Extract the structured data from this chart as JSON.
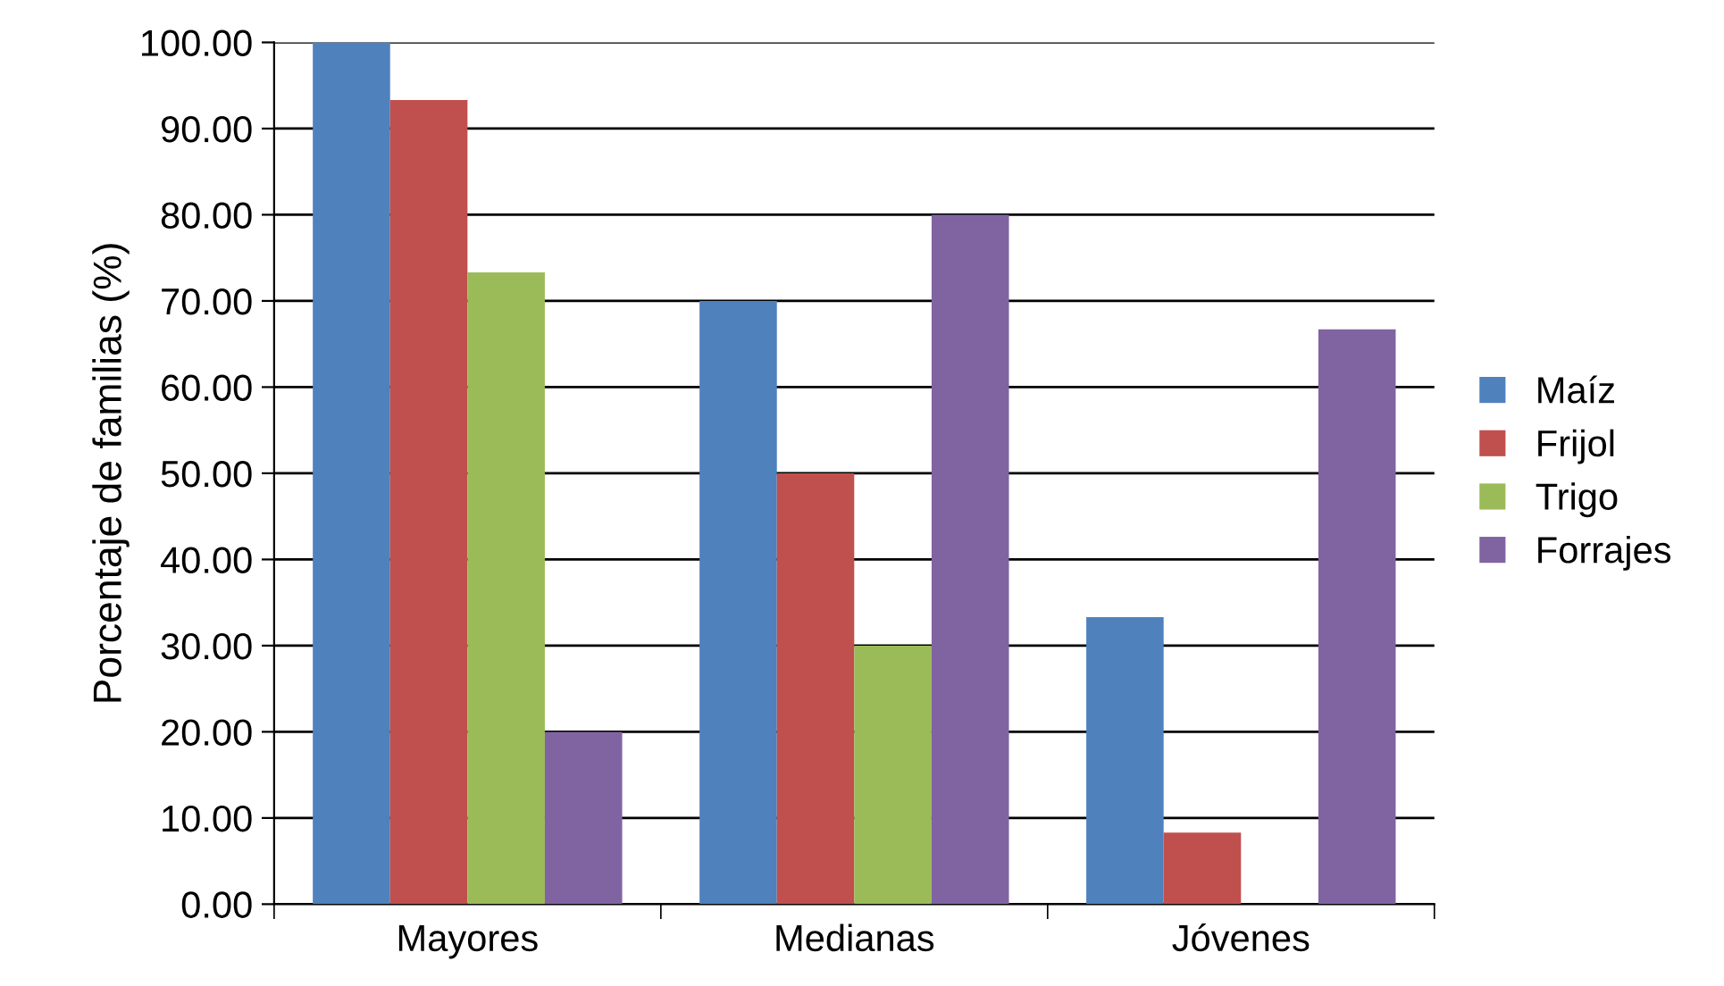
{
  "chart_data": {
    "type": "bar",
    "ylabel": "Porcentaje de familias (%)",
    "categories": [
      "Mayores",
      "Medianas",
      "Jóvenes"
    ],
    "series": [
      {
        "name": "Maíz",
        "color": "#4f81bd",
        "values": [
          100,
          70,
          33.3
        ]
      },
      {
        "name": "Frijol",
        "color": "#c0504d",
        "values": [
          93.3,
          50,
          8.3
        ]
      },
      {
        "name": "Trigo",
        "color": "#9bbb59",
        "values": [
          73.3,
          30,
          null
        ]
      },
      {
        "name": "Forrajes",
        "color": "#8064a2",
        "values": [
          20,
          80,
          66.7
        ]
      }
    ],
    "ylim": [
      0,
      100
    ],
    "yticks": [
      {
        "value": 0,
        "label": "0.00"
      },
      {
        "value": 10,
        "label": "10.00"
      },
      {
        "value": 20,
        "label": "20.00"
      },
      {
        "value": 30,
        "label": "30.00"
      },
      {
        "value": 40,
        "label": "40.00"
      },
      {
        "value": 50,
        "label": "50.00"
      },
      {
        "value": 60,
        "label": "60.00"
      },
      {
        "value": 70,
        "label": "70.00"
      },
      {
        "value": 80,
        "label": "80.00"
      },
      {
        "value": 90,
        "label": "90.00"
      },
      {
        "value": 100,
        "label": "100.00"
      }
    ],
    "grid": "y",
    "legend": "right"
  }
}
